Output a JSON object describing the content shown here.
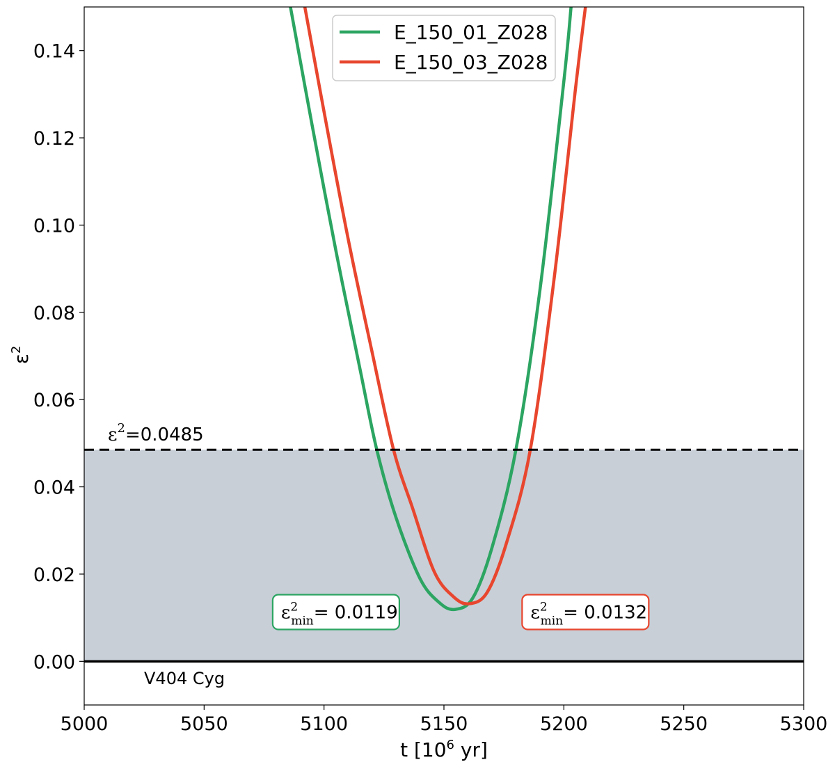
{
  "chart_data": {
    "type": "line",
    "xlabel": "t [10",
    "xlabel_exp": "6",
    "xlabel_tail": " yr]",
    "ylabel_base": "ε",
    "ylabel_exp": "2",
    "xlim": [
      5000,
      5300
    ],
    "ylim": [
      -0.01,
      0.15
    ],
    "xticks": [
      5000,
      5050,
      5100,
      5150,
      5200,
      5250,
      5300
    ],
    "yticks": [
      0.0,
      0.02,
      0.04,
      0.06,
      0.08,
      0.1,
      0.12,
      0.14
    ],
    "xtick_labels": [
      "5000",
      "5050",
      "5100",
      "5150",
      "5200",
      "5250",
      "5300"
    ],
    "ytick_labels": [
      "0.00",
      "0.02",
      "0.04",
      "0.06",
      "0.08",
      "0.10",
      "0.12",
      "0.14"
    ],
    "legend_position": "top-center",
    "series": [
      {
        "name": "E_150_01_Z028",
        "color": "#2ca562",
        "min_x": 5154.5,
        "min_y": 0.0119,
        "x": [
          5086,
          5095,
          5105,
          5115,
          5122,
          5130,
          5140,
          5148,
          5154.5,
          5162,
          5170,
          5180,
          5190,
          5200,
          5203
        ],
        "y": [
          0.15,
          0.123,
          0.094,
          0.067,
          0.0485,
          0.033,
          0.019,
          0.0135,
          0.0119,
          0.0145,
          0.026,
          0.0485,
          0.085,
          0.133,
          0.15
        ]
      },
      {
        "name": "E_150_03_Z028",
        "color": "#e8462e",
        "min_x": 5160.5,
        "min_y": 0.0132,
        "x": [
          5092,
          5100,
          5110,
          5120,
          5129,
          5137,
          5146,
          5154,
          5160.5,
          5168,
          5176,
          5186,
          5196,
          5205,
          5209
        ],
        "y": [
          0.15,
          0.126,
          0.097,
          0.071,
          0.0485,
          0.035,
          0.0205,
          0.0148,
          0.0132,
          0.0158,
          0.027,
          0.0485,
          0.088,
          0.132,
          0.15
        ]
      }
    ],
    "threshold": {
      "value": 0.0485,
      "label_base": "ε",
      "label_exp": "2",
      "label_value": "=0.0485"
    },
    "reference_line": {
      "value": 0.0,
      "label": "V404 Cyg"
    },
    "shaded_band": {
      "from": 0.0,
      "to": 0.0485,
      "color": "#c8cfd7"
    },
    "annotations": [
      {
        "base": "ε",
        "sup": "2",
        "sub": "min",
        "value": "= 0.0119",
        "color": "#2ca562",
        "x": 5105,
        "y": 0.0113
      },
      {
        "base": "ε",
        "sup": "2",
        "sub": "min",
        "value": "= 0.0132",
        "color": "#e8462e",
        "x": 5209,
        "y": 0.0113
      }
    ]
  }
}
